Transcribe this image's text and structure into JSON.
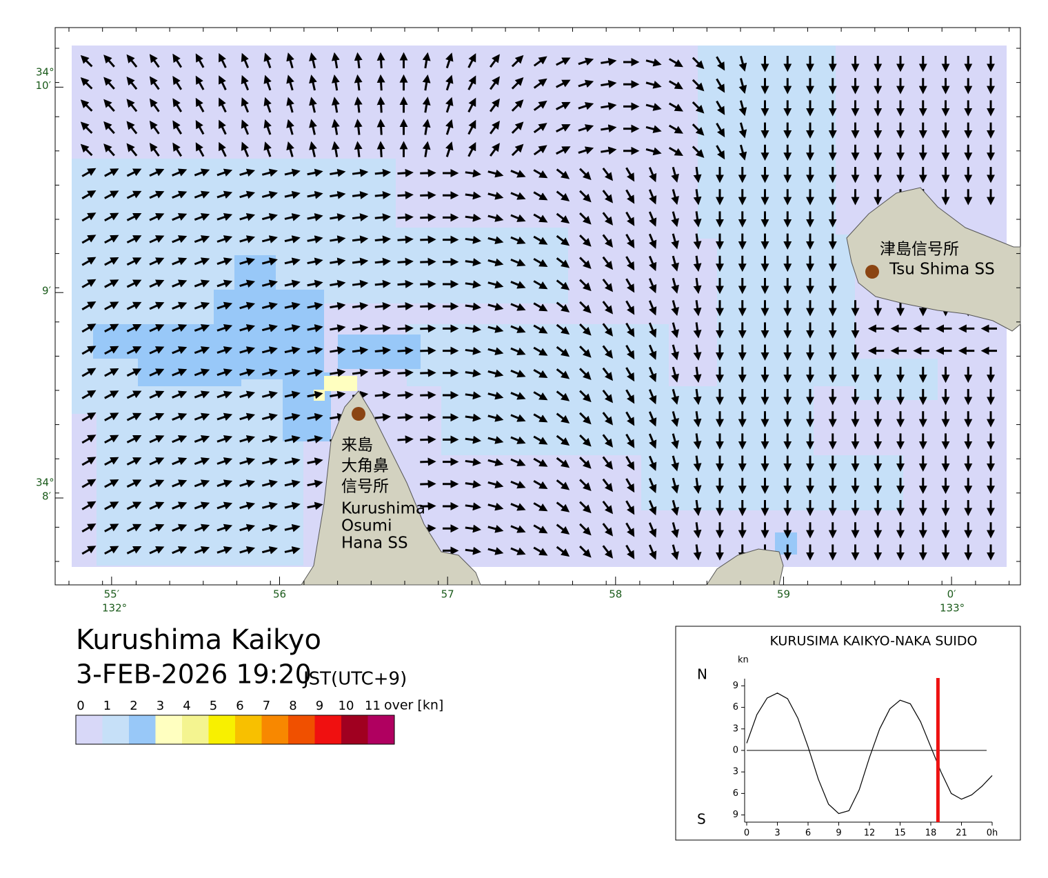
{
  "map": {
    "xlim": [
      54.664,
      60.41
    ],
    "ylim": [
      7.577,
      10.29
    ],
    "xticks": [
      {
        "value": 55,
        "label": "55′"
      },
      56,
      57,
      58,
      59,
      {
        "value": 60,
        "label": "0′"
      }
    ],
    "yticks": [
      {
        "value": 10,
        "label": "10′"
      },
      {
        "value": 9,
        "label": "9′"
      },
      {
        "value": 8,
        "label": "8′"
      }
    ],
    "lat_degree_labels": [
      "34°",
      "34°"
    ],
    "lon_degree_labels": [
      "132°",
      "133°"
    ],
    "stations": [
      {
        "lines": [
          "津島信号所",
          "Tsu Shima SS"
        ]
      },
      {
        "lines": [
          "来島",
          "大角鼻",
          "信号所",
          "Kurushima",
          "Osumi",
          "Hana SS"
        ]
      }
    ]
  },
  "title": "Kurushima Kaikyo",
  "datetime": "3-FEB-2026 19:20",
  "timezone": "JST(UTC+9)",
  "legend": {
    "ticks": [
      0,
      1,
      2,
      3,
      4,
      5,
      6,
      7,
      8,
      9,
      10,
      11
    ],
    "over_label": "over [kn]",
    "colors": [
      "#d8d8f8",
      "#c6e0f8",
      "#98c8f8",
      "#ffffc0",
      "#f4f490",
      "#f8f000",
      "#f8c000",
      "#f88800",
      "#f05000",
      "#f01010",
      "#a00020",
      "#b00060"
    ]
  },
  "chart_data": {
    "type": "line",
    "title": "KURUSIMA KAIKYO-NAKA SUIDO",
    "y_unit": "kn",
    "north_label": "N",
    "south_label": "S",
    "x": [
      0,
      1,
      2,
      3,
      4,
      5,
      6,
      7,
      8,
      9,
      10,
      11,
      12,
      13,
      14,
      15,
      16,
      17,
      18,
      19,
      20,
      21,
      22,
      23,
      24
    ],
    "series": [
      {
        "color": "#000000",
        "values": [
          1,
          5,
          7.3,
          8,
          7.2,
          4.5,
          0.5,
          -4,
          -7.5,
          -8.8,
          -8.4,
          -5.5,
          -1,
          3,
          5.8,
          7,
          6.5,
          4,
          0.5,
          -3,
          -6,
          -6.8,
          -6.2,
          -5,
          -3.5
        ]
      }
    ],
    "now_hour": 18.7,
    "now_color": "#ee1111",
    "xlim": [
      0,
      24
    ],
    "ylim": [
      -10,
      10
    ],
    "xticks": [
      0,
      3,
      6,
      9,
      12,
      15,
      18,
      21,
      {
        "value": 24,
        "label": "0h"
      }
    ],
    "yticks": [
      {
        "value": -9,
        "label": "9"
      },
      {
        "value": -6,
        "label": "6"
      },
      {
        "value": -3,
        "label": "3"
      },
      0,
      3,
      6,
      9
    ]
  }
}
